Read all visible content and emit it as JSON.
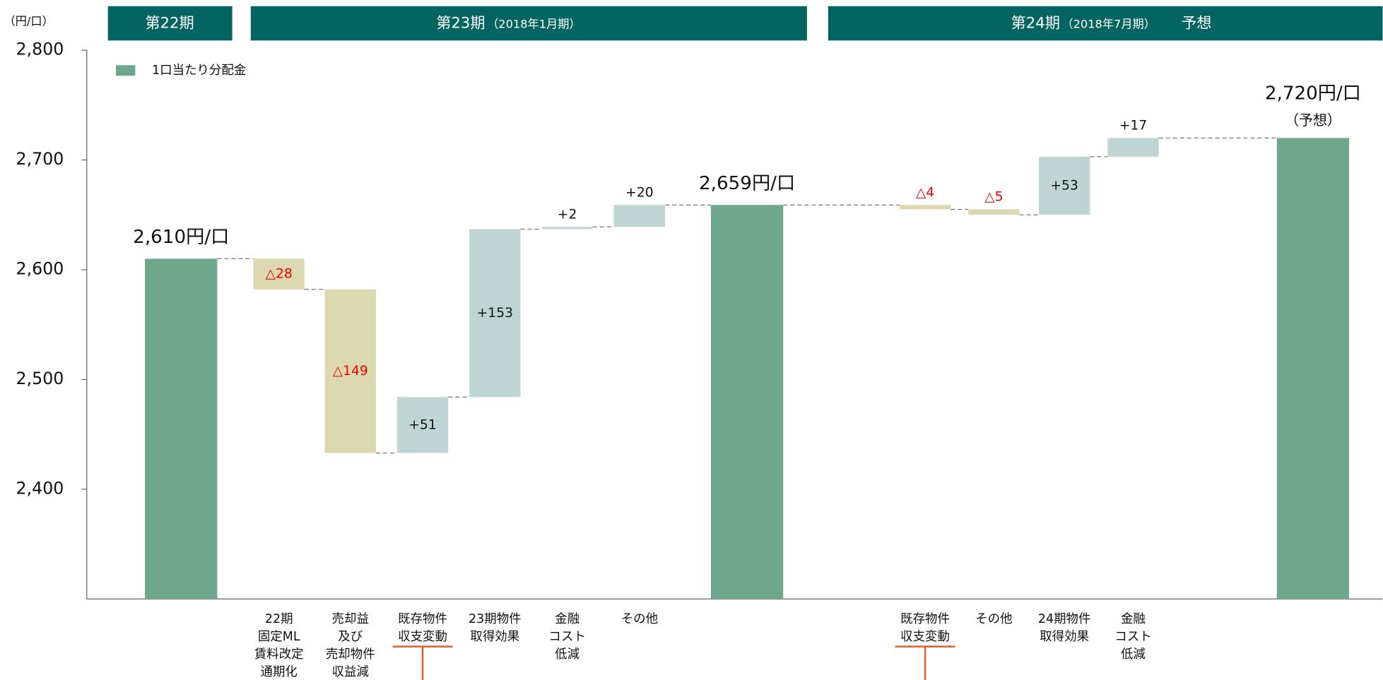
{
  "chart_data": {
    "type": "waterfall",
    "y_unit": "（円/口）",
    "periods": [
      {
        "name": "第22期"
      },
      {
        "name": "第23期",
        "sub": "（2018年1月期）"
      },
      {
        "name": "第24期",
        "sub": "（2018年7月期）",
        "note": "予想"
      }
    ],
    "legend": "1口当たり分配金",
    "categories": [
      null,
      [
        "22期",
        "固定ML",
        "賃料改定",
        "通期化"
      ],
      [
        "売却益",
        "及び",
        "売却物件",
        "収益減"
      ],
      [
        "既存物件",
        "収支変動"
      ],
      [
        "23期物件",
        "取得効果"
      ],
      [
        "金融",
        "コスト",
        "低減"
      ],
      [
        "その他"
      ],
      null,
      [
        "既存物件",
        "収支変動"
      ],
      [
        "その他"
      ],
      [
        "24期物件",
        "取得効果"
      ],
      [
        "金融",
        "コスト",
        "低減"
      ],
      null
    ],
    "measures": [
      "absolute",
      "relative",
      "relative",
      "relative",
      "relative",
      "relative",
      "relative",
      "absolute",
      "relative",
      "relative",
      "relative",
      "relative",
      "absolute"
    ],
    "values": [
      2610,
      -28,
      -149,
      51,
      153,
      2,
      20,
      2659,
      -4,
      -5,
      53,
      17,
      2720
    ],
    "value_labels": [
      "2,610円/口",
      "△28",
      "△149",
      "+51",
      "+153",
      "+2",
      "+20",
      "2,659円/口",
      "△4",
      "△5",
      "+53",
      "+17",
      "2,720円/口"
    ],
    "annotation": "（予想）",
    "colors": {
      "total": "#6fa78d",
      "increase": "#bfd5d3",
      "decrease": "#dcd8b0"
    },
    "ylim": [
      2300,
      2800
    ],
    "yticks": [
      {
        "value": 2400,
        "label": "2,400"
      },
      {
        "value": 2500,
        "label": "2,500"
      },
      {
        "value": 2600,
        "label": "2,600"
      },
      {
        "value": 2700,
        "label": "2,700"
      },
      {
        "value": 2800,
        "label": "2,800"
      }
    ]
  }
}
